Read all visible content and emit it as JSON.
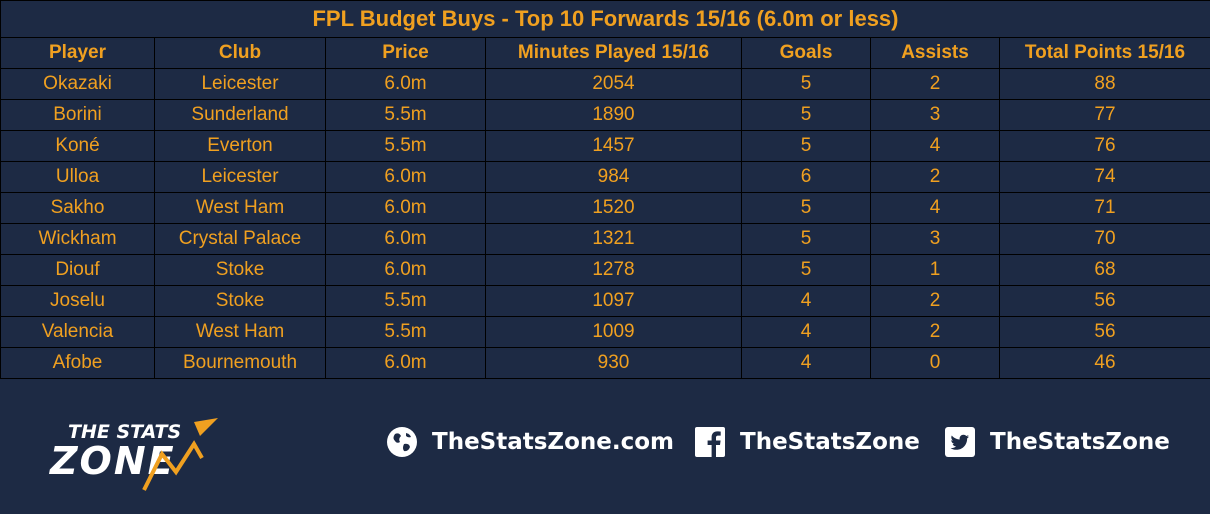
{
  "title": "FPL Budget Buys - Top 10 Forwards 15/16 (6.0m or less)",
  "columns": [
    "Player",
    "Club",
    "Price",
    "Minutes Played 15/16",
    "Goals",
    "Assists",
    "Total Points 15/16"
  ],
  "rows": [
    [
      "Okazaki",
      "Leicester",
      "6.0m",
      "2054",
      "5",
      "2",
      "88"
    ],
    [
      "Borini",
      "Sunderland",
      "5.5m",
      "1890",
      "5",
      "3",
      "77"
    ],
    [
      "Koné",
      "Everton",
      "5.5m",
      "1457",
      "5",
      "4",
      "76"
    ],
    [
      "Ulloa",
      "Leicester",
      "6.0m",
      "984",
      "6",
      "2",
      "74"
    ],
    [
      "Sakho",
      "West Ham",
      "6.0m",
      "1520",
      "5",
      "4",
      "71"
    ],
    [
      "Wickham",
      "Crystal Palace",
      "6.0m",
      "1321",
      "5",
      "3",
      "70"
    ],
    [
      "Diouf",
      "Stoke",
      "6.0m",
      "1278",
      "5",
      "1",
      "68"
    ],
    [
      "Joselu",
      "Stoke",
      "5.5m",
      "1097",
      "4",
      "2",
      "56"
    ],
    [
      "Valencia",
      "West Ham",
      "5.5m",
      "1009",
      "4",
      "2",
      "56"
    ],
    [
      "Afobe",
      "Bournemouth",
      "6.0m",
      "930",
      "4",
      "0",
      "46"
    ]
  ],
  "logo": {
    "line1": "THE STATS",
    "line2": "ZONE"
  },
  "social": [
    {
      "icon": "globe-icon",
      "text": "TheStatsZone.com"
    },
    {
      "icon": "facebook-icon",
      "text": "TheStatsZone"
    },
    {
      "icon": "twitter-icon",
      "text": "TheStatsZone"
    }
  ],
  "colors": {
    "background": "#1d2a44",
    "accent": "#f0a020",
    "text_light": "#ffffff"
  }
}
